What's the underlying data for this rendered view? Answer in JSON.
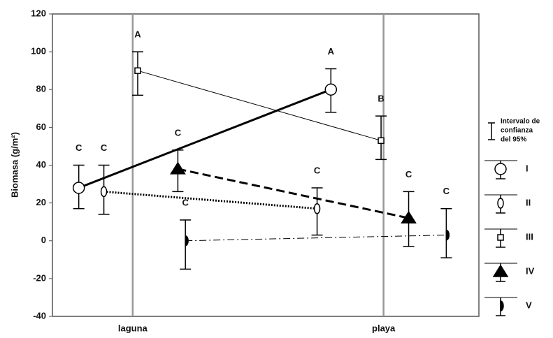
{
  "chart_data": {
    "type": "line",
    "y_label": "Biomasa (g/m²)",
    "xlim": [
      0.68,
      2.38
    ],
    "xticks": [
      {
        "value": 1,
        "label": "laguna"
      },
      {
        "value": 2,
        "label": "playa"
      }
    ],
    "ylim": [
      -40,
      120
    ],
    "yticks": [
      -40,
      -20,
      0,
      20,
      40,
      60,
      80,
      100,
      120
    ],
    "grid": "x",
    "legend_title": [
      "Intervalo de",
      "confianza",
      "del 95%"
    ],
    "series": [
      {
        "name": "I",
        "color": "#000",
        "marker": "circle",
        "dash": "solid",
        "width": 3,
        "x": [
          0.785,
          1.79
        ],
        "values": [
          28,
          80
        ],
        "ci_low": [
          17,
          68
        ],
        "ci_high": [
          40,
          91
        ],
        "letters": [
          "C",
          "A"
        ]
      },
      {
        "name": "II",
        "color": "#000",
        "marker": "ellipse",
        "dash": "dotted",
        "width": 3,
        "x": [
          0.885,
          1.735
        ],
        "values": [
          26,
          17
        ],
        "ci_low": [
          14,
          3
        ],
        "ci_high": [
          40,
          28
        ],
        "letters": [
          "C",
          "C"
        ]
      },
      {
        "name": "III",
        "color": "#000",
        "marker": "square",
        "dash": "solid",
        "width": 1,
        "x": [
          1.02,
          1.99
        ],
        "values": [
          90,
          53
        ],
        "ci_low": [
          77,
          43
        ],
        "ci_high": [
          100,
          66
        ],
        "letters": [
          "A",
          "B"
        ]
      },
      {
        "name": "IV",
        "color": "#000",
        "marker": "triangle",
        "dash": "dashed",
        "width": 3,
        "x": [
          1.18,
          2.1
        ],
        "values": [
          38,
          12
        ],
        "ci_low": [
          26,
          -3
        ],
        "ci_high": [
          48,
          26
        ],
        "letters": [
          "C",
          "C"
        ]
      },
      {
        "name": "V",
        "color": "#000",
        "marker": "half",
        "dash": "dashdot",
        "width": 1,
        "x": [
          1.21,
          2.25
        ],
        "values": [
          0,
          3
        ],
        "ci_low": [
          -15,
          -9
        ],
        "ci_high": [
          11,
          17
        ],
        "letters": [
          "C",
          "C"
        ]
      }
    ]
  }
}
